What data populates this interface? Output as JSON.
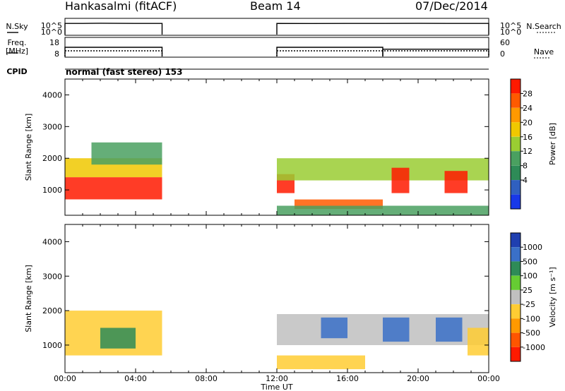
{
  "header": {
    "radar": "Hankasalmi (fitACF)",
    "beam": "Beam 14",
    "date": "07/Dec/2014"
  },
  "panels": {
    "nsky_label": "N.Sky",
    "nsearch_label": "N.Search",
    "freq_label_line1": "Freq.",
    "freq_label_line2": "[MHz]",
    "nave_label": "Nave",
    "cpid_label": "CPID",
    "cpid_text": "normal (fast stereo) 153",
    "nsky_ticks": [
      "10^5",
      "10^0"
    ],
    "nsearch_ticks": [
      "10^5",
      "10^0"
    ],
    "freq_ticks": [
      "18",
      "8"
    ],
    "nave_ticks": [
      "60",
      "0"
    ]
  },
  "chart_data": [
    {
      "type": "line",
      "title": "",
      "series": [
        {
          "name": "N.Sky",
          "segments": [
            {
              "x": [
                "00:00",
                "01:00",
                "02:00",
                "03:00",
                "04:00",
                "05:30"
              ],
              "y": [
                10000,
                10000,
                12000,
                11000,
                10000,
                10000
              ]
            },
            {
              "x": [
                "12:00",
                "14:00",
                "16:00",
                "18:00",
                "20:00",
                "22:00",
                "24:00"
              ],
              "y": [
                10000,
                9500,
                10000,
                10000,
                10500,
                10000,
                10000
              ]
            }
          ]
        },
        {
          "name": "Freq.",
          "segments": [
            {
              "x": [
                "00:00",
                "05:30"
              ],
              "y": [
                10.5,
                10.5
              ]
            },
            {
              "x": [
                "12:00",
                "24:00"
              ],
              "y": [
                10.5,
                10.5
              ]
            }
          ]
        },
        {
          "name": "Nave",
          "segments": [
            {
              "x": [
                "00:00",
                "05:30"
              ],
              "y": [
                30,
                30
              ]
            },
            {
              "x": [
                "12:00",
                "18:00"
              ],
              "y": [
                30,
                30
              ]
            },
            {
              "x": [
                "18:00",
                "24:00"
              ],
              "y": [
                22,
                22
              ]
            }
          ]
        }
      ]
    },
    {
      "type": "heatmap",
      "ylabel": "Slant Range [km]",
      "colorbar_label": "Power [dB]",
      "colorbar_ticks": [
        "28",
        "24",
        "20",
        "16",
        "12",
        "8",
        "4"
      ],
      "colorbar_colors": [
        "#ff1a00",
        "#ff5a00",
        "#ff9900",
        "#f0c800",
        "#9acd32",
        "#4aa060",
        "#2e8b57",
        "#3060c0",
        "#1838e8"
      ],
      "y_ticks": [
        "4000",
        "3000",
        "2000",
        "1000"
      ],
      "ylim": [
        200,
        4500
      ],
      "blobs": [
        {
          "t0": 0.0,
          "t1": 5.5,
          "r0": 700,
          "r1": 1400,
          "value": 28
        },
        {
          "t0": 0.0,
          "t1": 5.5,
          "r0": 1400,
          "r1": 2000,
          "value": 16
        },
        {
          "t0": 1.5,
          "t1": 5.5,
          "r0": 1800,
          "r1": 2500,
          "value": 8
        },
        {
          "t0": 12.0,
          "t1": 13.0,
          "r0": 900,
          "r1": 1500,
          "value": 28
        },
        {
          "t0": 13.0,
          "t1": 18.0,
          "r0": 400,
          "r1": 700,
          "value": 24
        },
        {
          "t0": 12.0,
          "t1": 24.0,
          "r0": 1300,
          "r1": 2000,
          "value": 12
        },
        {
          "t0": 18.5,
          "t1": 19.5,
          "r0": 900,
          "r1": 1700,
          "value": 28
        },
        {
          "t0": 21.5,
          "t1": 22.8,
          "r0": 900,
          "r1": 1600,
          "value": 28
        },
        {
          "t0": 12.0,
          "t1": 24.0,
          "r0": 200,
          "r1": 500,
          "value": 8
        }
      ]
    },
    {
      "type": "heatmap",
      "ylabel": "Slant Range [km]",
      "colorbar_label": "Velocity [m s⁻¹]",
      "colorbar_ticks": [
        "1000",
        "500",
        "100",
        "25",
        "-25",
        "-100",
        "-500",
        "-1000"
      ],
      "colorbar_colors": [
        "#1f3fb0",
        "#3a70c8",
        "#2e8b57",
        "#66cc33",
        "#c0c0c0",
        "#ffcc33",
        "#ff9900",
        "#ff5500",
        "#ff1a00"
      ],
      "y_ticks": [
        "4000",
        "3000",
        "2000",
        "1000"
      ],
      "ylim": [
        200,
        4500
      ],
      "blobs": [
        {
          "t0": 0.0,
          "t1": 5.5,
          "r0": 700,
          "r1": 2000,
          "value": -100
        },
        {
          "t0": 2.0,
          "t1": 4.0,
          "r0": 900,
          "r1": 1500,
          "value": 100
        },
        {
          "t0": 12.0,
          "t1": 24.0,
          "r0": 1000,
          "r1": 1900,
          "value": 0
        },
        {
          "t0": 14.5,
          "t1": 16.0,
          "r0": 1200,
          "r1": 1800,
          "value": 500
        },
        {
          "t0": 18.0,
          "t1": 19.5,
          "r0": 1100,
          "r1": 1800,
          "value": 500
        },
        {
          "t0": 21.0,
          "t1": 22.5,
          "r0": 1100,
          "r1": 1800,
          "value": 500
        },
        {
          "t0": 12.0,
          "t1": 17.0,
          "r0": 300,
          "r1": 700,
          "value": -100
        },
        {
          "t0": 22.8,
          "t1": 24.0,
          "r0": 700,
          "r1": 1500,
          "value": -100
        }
      ]
    }
  ],
  "xaxis": {
    "ticks": [
      "00:00",
      "04:00",
      "08:00",
      "12:00",
      "16:00",
      "20:00",
      "00:00"
    ],
    "label": "Time UT"
  }
}
